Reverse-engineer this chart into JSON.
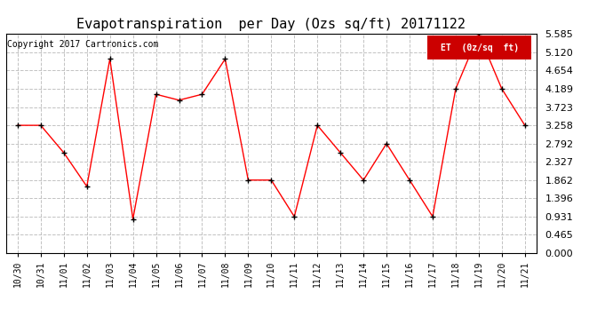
{
  "title": "Evapotranspiration  per Day (Ozs sq/ft) 20171122",
  "copyright": "Copyright 2017 Cartronics.com",
  "legend_label": "ET  (0z/sq  ft)",
  "dates": [
    "10/30",
    "10/31",
    "11/01",
    "11/02",
    "11/03",
    "11/04",
    "11/05",
    "11/06",
    "11/07",
    "11/08",
    "11/09",
    "11/10",
    "11/11",
    "11/12",
    "11/13",
    "11/14",
    "11/15",
    "11/16",
    "11/17",
    "11/18",
    "11/19",
    "11/20",
    "11/21"
  ],
  "values": [
    3.258,
    3.258,
    2.56,
    1.7,
    4.95,
    0.87,
    4.05,
    3.9,
    4.05,
    4.95,
    1.862,
    1.862,
    0.931,
    3.258,
    2.56,
    1.862,
    2.792,
    1.862,
    0.931,
    4.189,
    5.585,
    4.189,
    3.258
  ],
  "line_color": "red",
  "marker": "+",
  "marker_color": "black",
  "bg_color": "white",
  "grid_color": "#bbbbbb",
  "yticks": [
    0.0,
    0.465,
    0.931,
    1.396,
    1.862,
    2.327,
    2.792,
    3.258,
    3.723,
    4.189,
    4.654,
    5.12,
    5.585
  ],
  "ylim_min": 0.0,
  "ylim_max": 5.585,
  "title_fontsize": 11,
  "copyright_fontsize": 7,
  "tick_fontsize": 7,
  "ytick_fontsize": 8,
  "legend_bg": "#cc0000",
  "legend_text_color": "white",
  "legend_fontsize": 7
}
